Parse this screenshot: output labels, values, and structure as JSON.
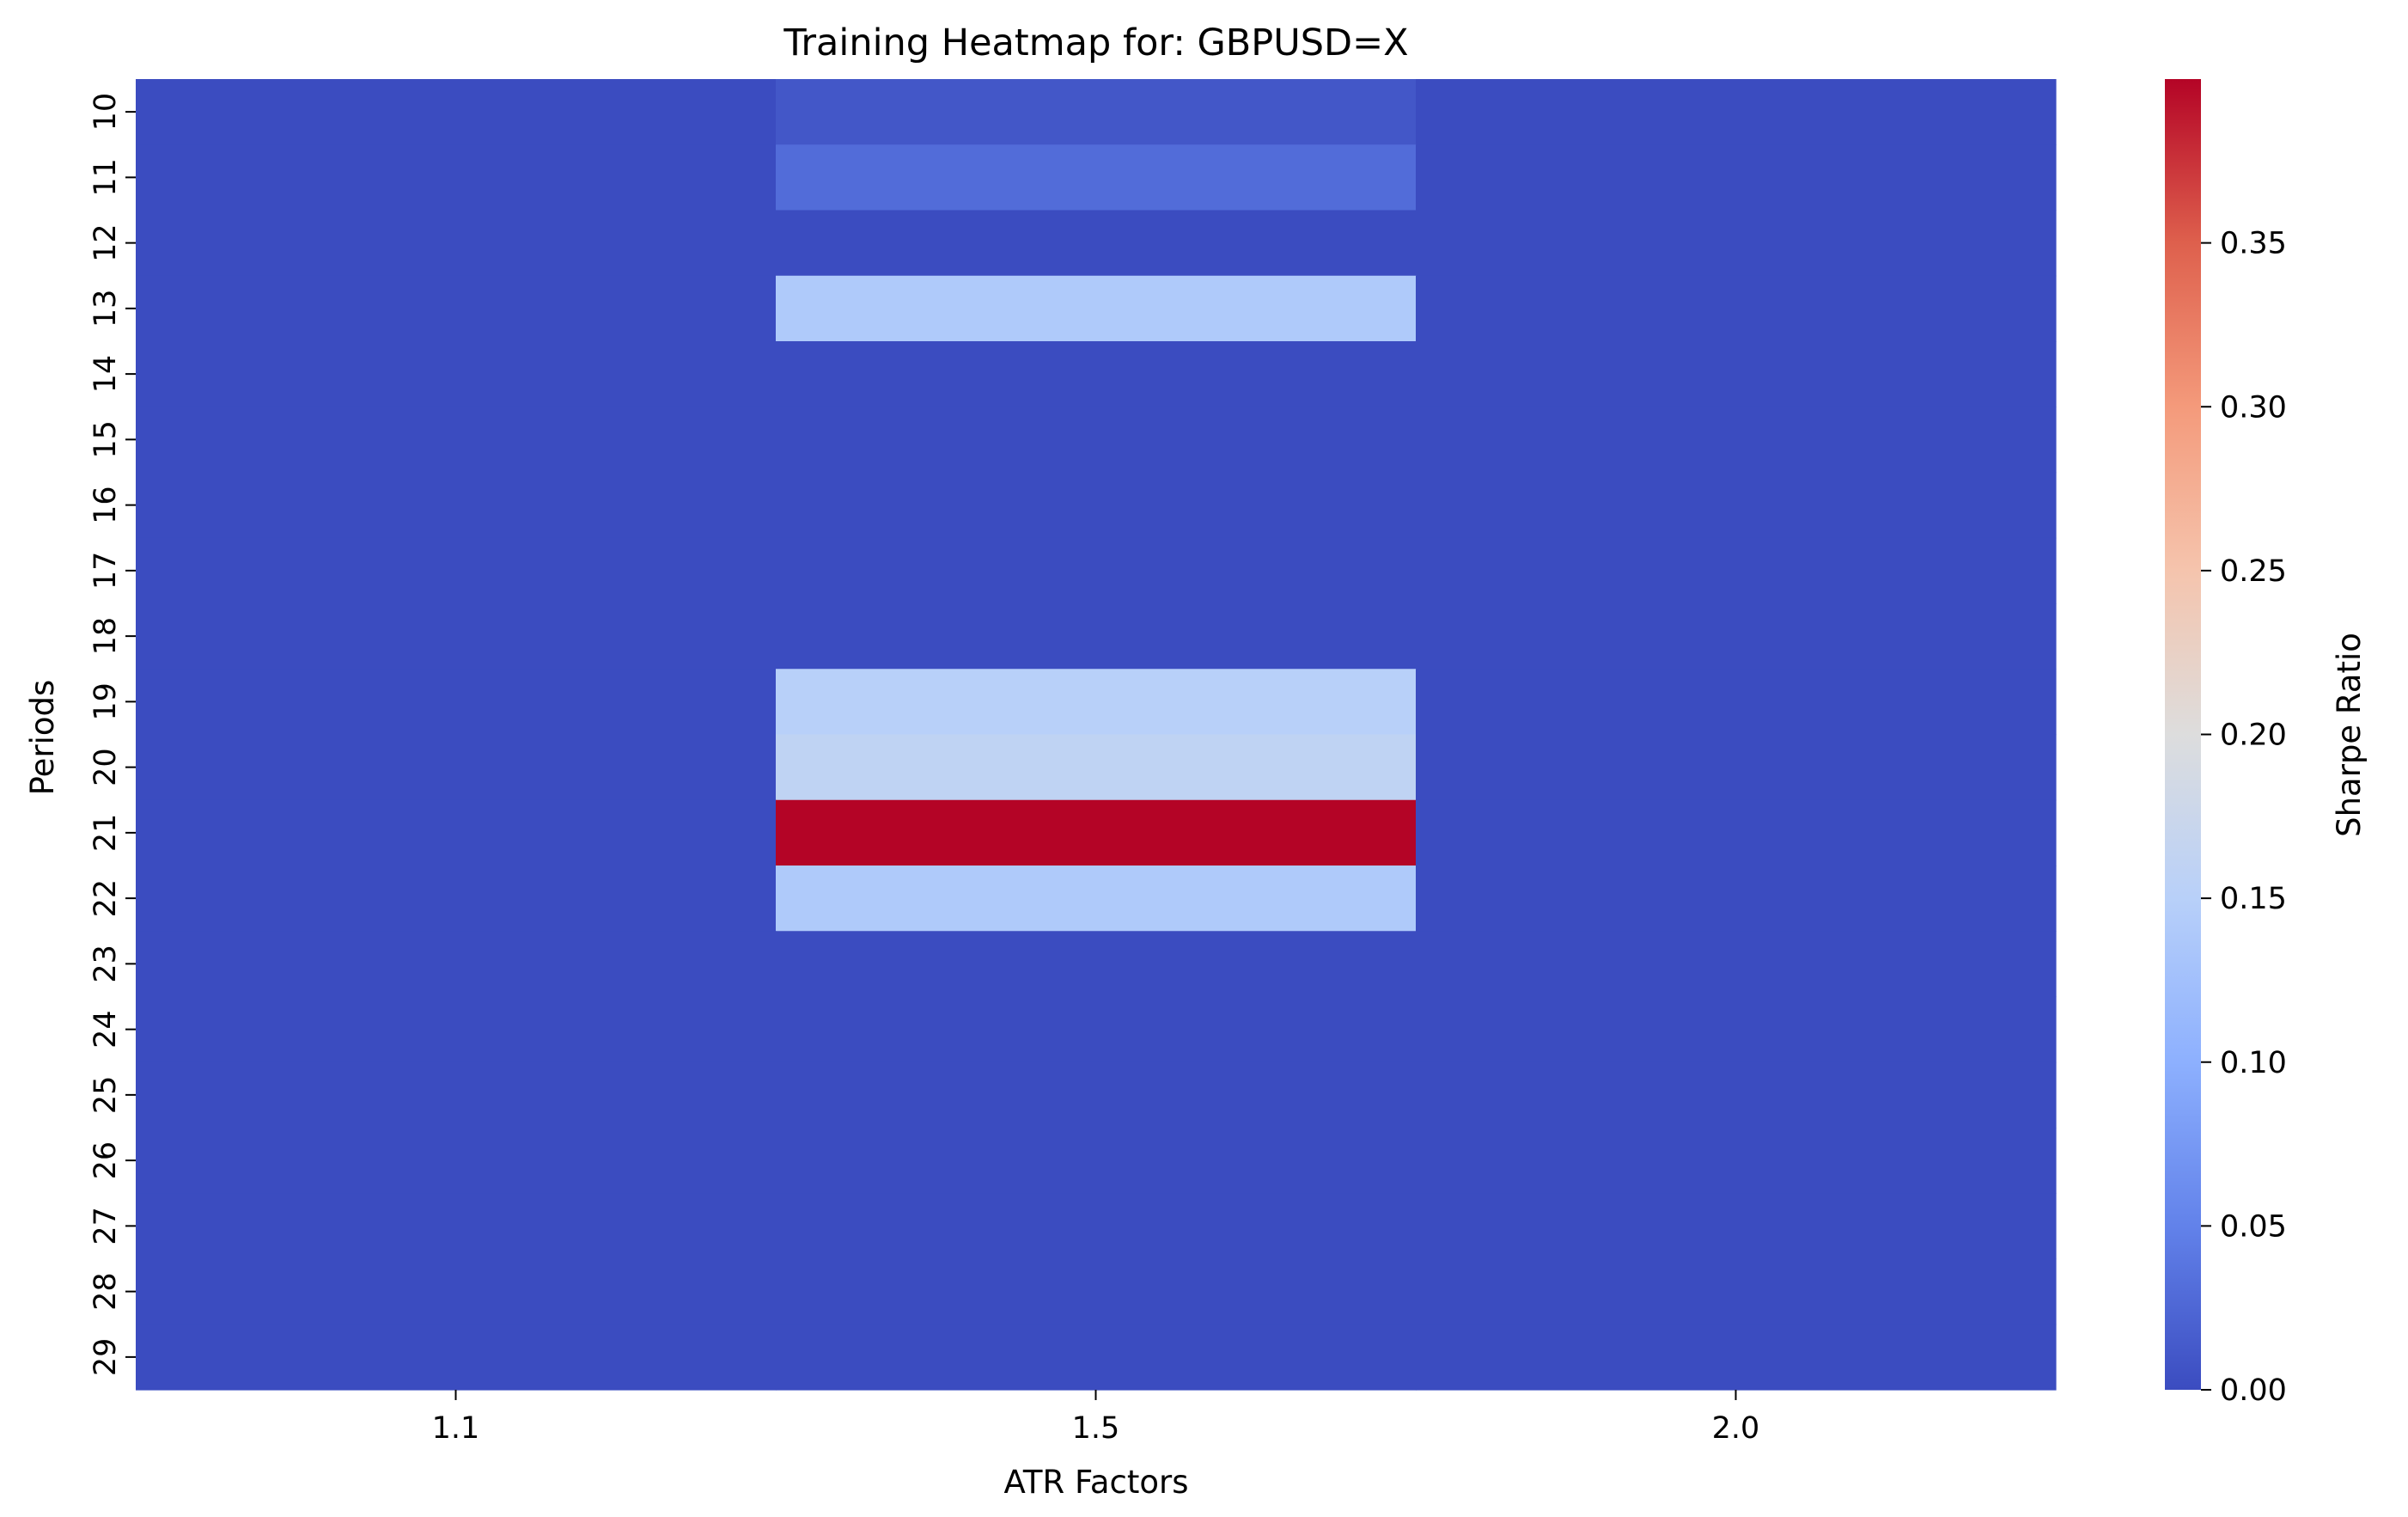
{
  "chart_data": {
    "type": "heatmap",
    "title": "Training Heatmap for: GBPUSD=X",
    "xlabel": "ATR Factors",
    "ylabel": "Periods",
    "x_categories": [
      "1.1",
      "1.5",
      "2.0"
    ],
    "y_categories": [
      "10",
      "11",
      "12",
      "13",
      "14",
      "15",
      "16",
      "17",
      "18",
      "19",
      "20",
      "21",
      "22",
      "23",
      "24",
      "25",
      "26",
      "27",
      "28",
      "29"
    ],
    "values": [
      [
        0.0,
        0.01,
        0.0
      ],
      [
        0.0,
        0.03,
        0.0
      ],
      [
        0.0,
        0.0,
        0.0
      ],
      [
        0.0,
        0.14,
        0.0
      ],
      [
        0.0,
        0.0,
        0.0
      ],
      [
        0.0,
        0.0,
        0.0
      ],
      [
        0.0,
        0.0,
        0.0
      ],
      [
        0.0,
        0.0,
        0.0
      ],
      [
        0.0,
        0.0,
        0.0
      ],
      [
        0.0,
        0.15,
        0.0
      ],
      [
        0.0,
        0.16,
        0.0
      ],
      [
        0.0,
        0.4,
        0.0
      ],
      [
        0.0,
        0.14,
        0.0
      ],
      [
        0.0,
        0.0,
        0.0
      ],
      [
        0.0,
        0.0,
        0.0
      ],
      [
        0.0,
        0.0,
        0.0
      ],
      [
        0.0,
        0.0,
        0.0
      ],
      [
        0.0,
        0.0,
        0.0
      ],
      [
        0.0,
        0.0,
        0.0
      ],
      [
        0.0,
        0.0,
        0.0
      ]
    ],
    "colorbar": {
      "label": "Sharpe Ratio",
      "range": [
        0.0,
        0.4
      ],
      "ticks": [
        "0.00",
        "0.05",
        "0.10",
        "0.15",
        "0.20",
        "0.25",
        "0.30",
        "0.35"
      ],
      "colormap": "coolwarm"
    },
    "grid": false
  }
}
